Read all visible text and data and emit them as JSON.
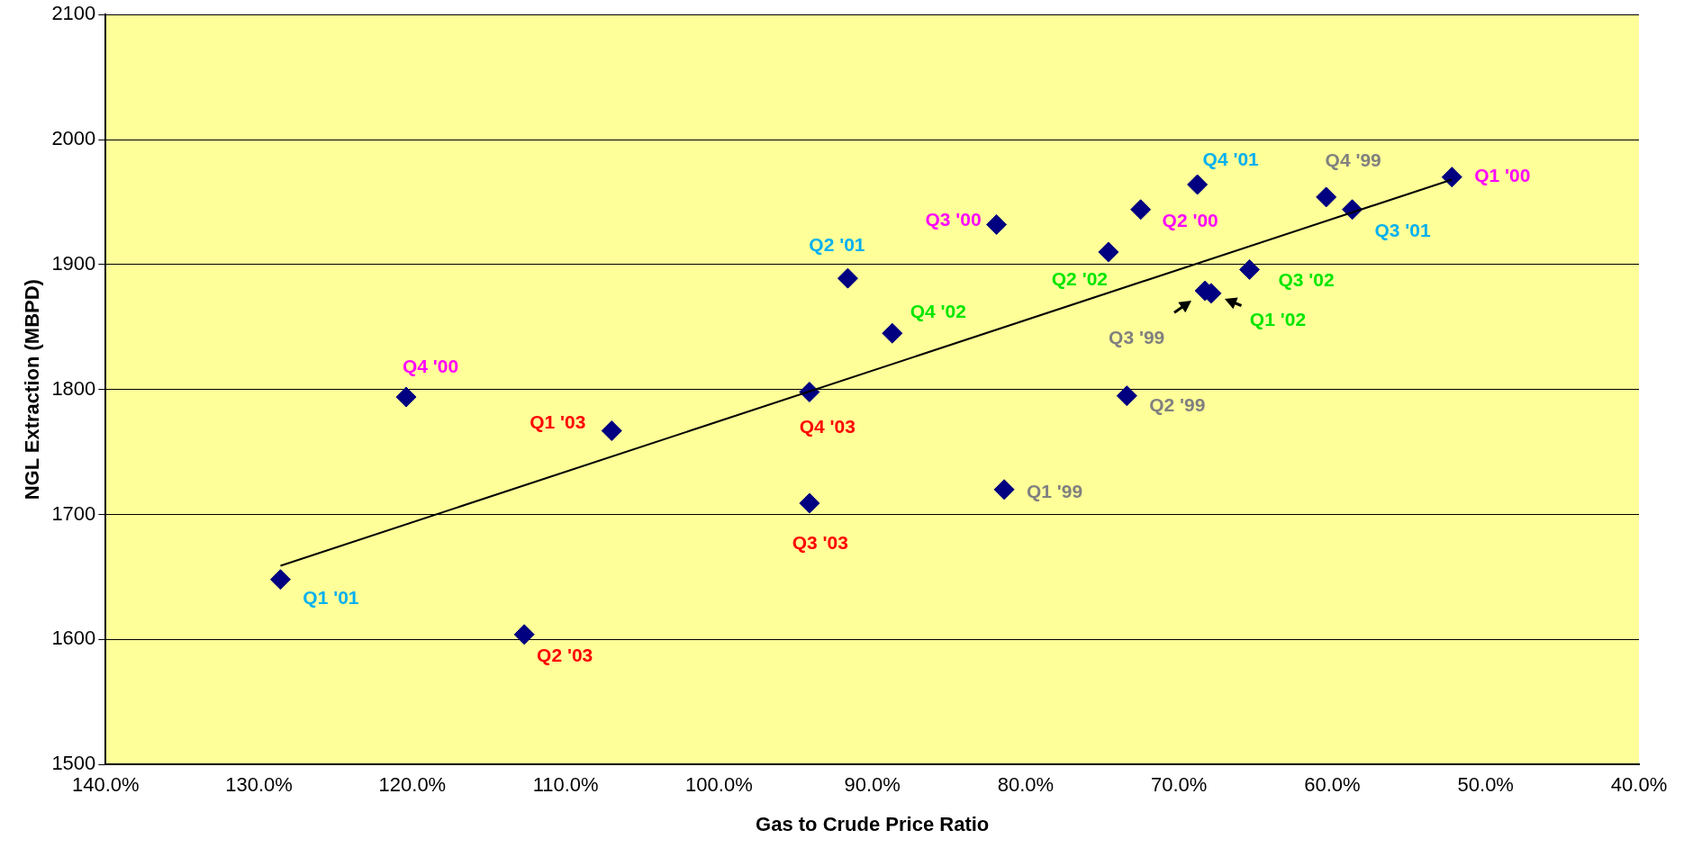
{
  "chart_data": {
    "type": "scatter",
    "xlabel": "Gas to Crude Price Ratio",
    "ylabel": "NGL Extraction (MBPD)",
    "xlim": [
      140,
      40
    ],
    "xticks": [
      {
        "value": 140,
        "label": "140.0%"
      },
      {
        "value": 130,
        "label": "130.0%"
      },
      {
        "value": 120,
        "label": "120.0%"
      },
      {
        "value": 110,
        "label": "110.0%"
      },
      {
        "value": 100,
        "label": "100.0%"
      },
      {
        "value": 90,
        "label": "90.0%"
      },
      {
        "value": 80,
        "label": "80.0%"
      },
      {
        "value": 70,
        "label": "70.0%"
      },
      {
        "value": 60,
        "label": "60.0%"
      },
      {
        "value": 50,
        "label": "50.0%"
      },
      {
        "value": 40,
        "label": "40.0%"
      }
    ],
    "ylim": [
      1500,
      2100
    ],
    "yticks": [
      1500,
      1600,
      1700,
      1800,
      1900,
      2000,
      2100
    ],
    "grid": "y",
    "marker": "diamond",
    "series": [
      {
        "color": "#000080",
        "x": [
          81.4,
          73.4,
          68.3,
          60.4
        ],
        "values": [
          1720,
          1795,
          1879,
          1954
        ],
        "value_labels": [
          "Q1 '99",
          "Q2 '99",
          "Q3 '99",
          "Q4 '99"
        ]
      },
      {
        "color": "#000080",
        "x": [
          52.2,
          72.5,
          81.9,
          120.4
        ],
        "values": [
          1970,
          1944,
          1932,
          1794
        ],
        "value_labels": [
          "Q1 '00",
          "Q2 '00",
          "Q3 '00",
          "Q4 '00"
        ]
      },
      {
        "color": "#000080",
        "x": [
          128.6,
          91.6,
          58.7,
          68.8
        ],
        "values": [
          1648,
          1889,
          1944,
          1964
        ],
        "value_labels": [
          "Q1 '01",
          "Q2 '01",
          "Q3 '01",
          "Q4 '01"
        ]
      },
      {
        "color": "#000080",
        "x": [
          67.9,
          74.6,
          65.4,
          88.7
        ],
        "values": [
          1877,
          1910,
          1896,
          1845
        ],
        "value_labels": [
          "Q1 '02",
          "Q2 '02",
          "Q3 '02",
          "Q4 '02"
        ]
      },
      {
        "color": "#000080",
        "x": [
          107.0,
          112.7,
          94.1,
          94.1
        ],
        "values": [
          1767,
          1604,
          1709,
          1798
        ],
        "value_labels": [
          "Q1 '03",
          "Q2 '03",
          "Q3 '03",
          "Q4 '03"
        ]
      },
      {
        "type": "line",
        "marker": "none",
        "color": "#000000",
        "x": [
          128.6,
          52.2
        ],
        "values": [
          1659,
          1968
        ]
      }
    ]
  }
}
